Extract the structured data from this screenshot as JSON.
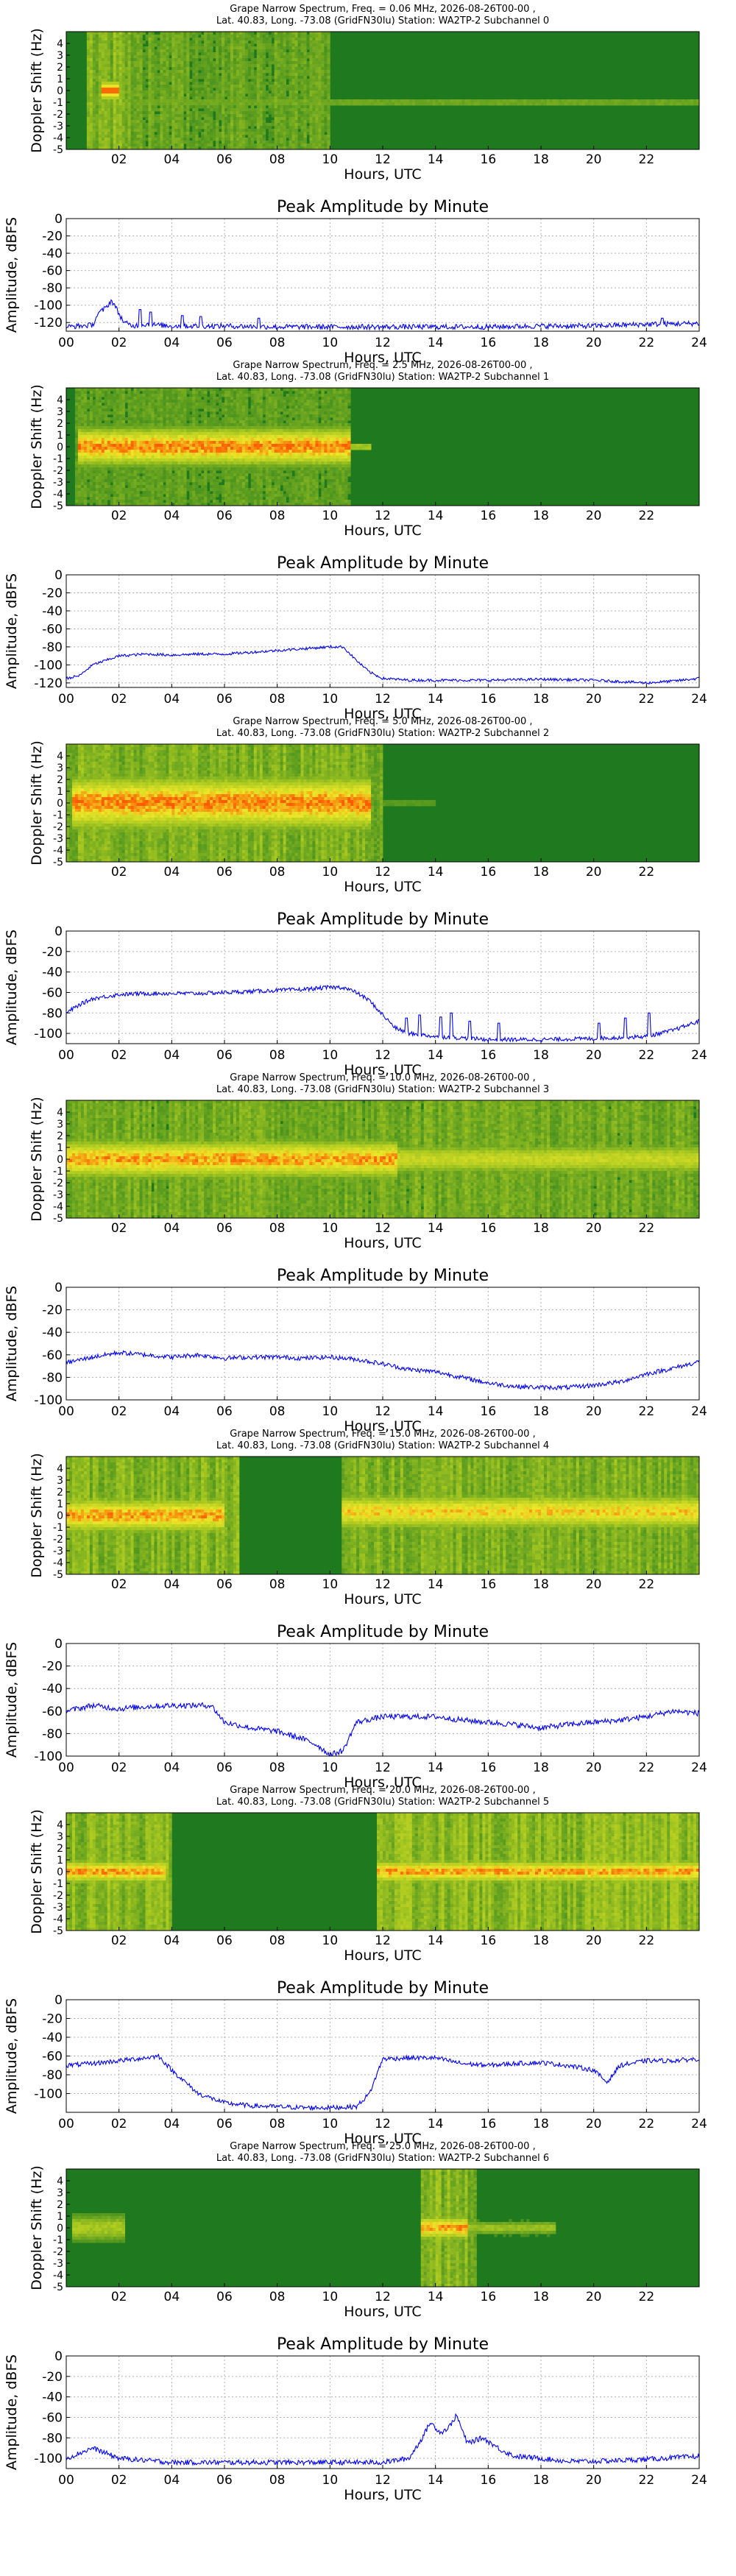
{
  "figure": {
    "spectrum_ylabel": "Doppler Shift (Hz)",
    "amp_title": "Peak Amplitude by Minute",
    "amp_ylabel": "Amplitude, dBFS",
    "xlabel": "Hours, UTC",
    "colors": {
      "line": "#0000ff",
      "spec_bg": "#1f7a1f",
      "spec_mid": "#a8c820",
      "spec_hot": "#ff5a00"
    }
  },
  "chart_data": [
    {
      "type": "heatmap",
      "channel": 0,
      "title_line1": "Grape Narrow Spectrum, Freq. = 0.06 MHz, 2026-08-26T00-00 ,",
      "title_line2": "Lat.  40.83, Long. -73.08 (GridFN30lu) Station: WA2TP-2 Subchannel 0",
      "xlabel": "Hours, UTC",
      "ylabel": "Doppler Shift (Hz)",
      "x_ticks": [
        "02",
        "04",
        "06",
        "08",
        "10",
        "12",
        "14",
        "16",
        "18",
        "20",
        "22"
      ],
      "y_ticks": [
        "4",
        "3",
        "2",
        "1",
        "0",
        "-1",
        "-2",
        "-3",
        "-4",
        "-5"
      ],
      "xlim": [
        0,
        24
      ],
      "ylim": [
        -5,
        5
      ],
      "features": [
        {
          "kind": "carrier",
          "start": 1.0,
          "end": 24,
          "doppler": -1.0,
          "intensity": 0.35,
          "width": 0.15
        },
        {
          "kind": "hotspot",
          "start": 1.3,
          "end": 2.0,
          "doppler": 0.0,
          "intensity": 1.0
        },
        {
          "kind": "noise_band",
          "start": 0.8,
          "end": 2.4,
          "intensity": 0.7
        },
        {
          "kind": "noise_band",
          "start": 2.4,
          "end": 10.0,
          "intensity": 0.45
        }
      ]
    },
    {
      "type": "line",
      "channel": 0,
      "title": "Peak Amplitude by Minute",
      "xlabel": "Hours, UTC",
      "ylabel": "Amplitude, dBFS",
      "x_ticks": [
        "00",
        "02",
        "04",
        "06",
        "08",
        "10",
        "12",
        "14",
        "16",
        "18",
        "20",
        "22",
        "24"
      ],
      "y_ticks": [
        "0",
        "-20",
        "-40",
        "-60",
        "-80",
        "-100",
        "-120"
      ],
      "xlim": [
        0,
        24
      ],
      "ylim": [
        -130,
        0
      ],
      "x": [
        0,
        0.5,
        1,
        1.2,
        1.5,
        1.7,
        1.8,
        2,
        2.2,
        2.5,
        3,
        4,
        6,
        8,
        10,
        12,
        14,
        16,
        18,
        20,
        22,
        24
      ],
      "values": [
        -125,
        -124,
        -123,
        -110,
        -103,
        -95,
        -98,
        -110,
        -120,
        -124,
        -122,
        -124,
        -124,
        -125,
        -125,
        -125,
        -125,
        -125,
        -124,
        -124,
        -122,
        -121
      ],
      "noise": 3,
      "spikes": [
        [
          2.8,
          -105
        ],
        [
          3.2,
          -108
        ],
        [
          4.4,
          -112
        ],
        [
          5.1,
          -113
        ],
        [
          7.3,
          -115
        ],
        [
          22.6,
          -115
        ]
      ]
    },
    {
      "type": "heatmap",
      "channel": 1,
      "title_line1": "Grape Narrow Spectrum, Freq. = 2.5 MHz, 2026-08-26T00-00 ,",
      "title_line2": "Lat.  40.83, Long. -73.08 (GridFN30lu) Station: WA2TP-2 Subchannel 1",
      "xlabel": "Hours, UTC",
      "ylabel": "Doppler Shift (Hz)",
      "x_ticks": [
        "02",
        "04",
        "06",
        "08",
        "10",
        "12",
        "14",
        "16",
        "18",
        "20",
        "22"
      ],
      "y_ticks": [
        "4",
        "3",
        "2",
        "1",
        "0",
        "-1",
        "-2",
        "-3",
        "-4",
        "-5"
      ],
      "xlim": [
        0,
        24
      ],
      "ylim": [
        -5,
        5
      ],
      "features": [
        {
          "kind": "carrier",
          "start": 0.5,
          "end": 10.8,
          "doppler": 0.0,
          "intensity": 1.0,
          "width": 1.0
        },
        {
          "kind": "carrier",
          "start": 10.8,
          "end": 11.5,
          "doppler": 0.0,
          "intensity": 0.5,
          "width": 0.2
        },
        {
          "kind": "noise_band",
          "start": 0.3,
          "end": 10.8,
          "intensity": 0.35
        }
      ]
    },
    {
      "type": "line",
      "channel": 1,
      "title": "Peak Amplitude by Minute",
      "xlabel": "Hours, UTC",
      "ylabel": "Amplitude, dBFS",
      "x_ticks": [
        "00",
        "02",
        "04",
        "06",
        "08",
        "10",
        "12",
        "14",
        "16",
        "18",
        "20",
        "22",
        "24"
      ],
      "y_ticks": [
        "0",
        "-20",
        "-40",
        "-60",
        "-80",
        "-100",
        "-120"
      ],
      "xlim": [
        0,
        24
      ],
      "ylim": [
        -125,
        0
      ],
      "x": [
        0,
        0.5,
        1,
        2,
        3,
        4,
        5,
        6,
        7,
        8,
        9,
        10,
        10.5,
        11,
        11.5,
        12,
        13,
        14,
        16,
        18,
        20,
        22,
        23,
        24
      ],
      "values": [
        -115,
        -112,
        -100,
        -90,
        -88,
        -89,
        -88,
        -88,
        -86,
        -84,
        -82,
        -80,
        -80,
        -95,
        -108,
        -115,
        -117,
        -117,
        -117,
        -116,
        -117,
        -120,
        -118,
        -115
      ],
      "noise": 1.5,
      "spikes": []
    },
    {
      "type": "heatmap",
      "channel": 2,
      "title_line1": "Grape Narrow Spectrum, Freq. = 5.0 MHz, 2026-08-26T00-00 ,",
      "title_line2": "Lat.  40.83, Long. -73.08 (GridFN30lu) Station: WA2TP-2 Subchannel 2",
      "xlabel": "Hours, UTC",
      "ylabel": "Doppler Shift (Hz)",
      "x_ticks": [
        "02",
        "04",
        "06",
        "08",
        "10",
        "12",
        "14",
        "16",
        "18",
        "20",
        "22"
      ],
      "y_ticks": [
        "4",
        "3",
        "2",
        "1",
        "0",
        "-1",
        "-2",
        "-3",
        "-4",
        "-5"
      ],
      "xlim": [
        0,
        24
      ],
      "ylim": [
        -5,
        5
      ],
      "features": [
        {
          "kind": "carrier",
          "start": 0.2,
          "end": 11.5,
          "doppler": 0.0,
          "intensity": 1.0,
          "width": 1.4
        },
        {
          "kind": "noise_band",
          "start": 0.0,
          "end": 12.0,
          "intensity": 0.65
        },
        {
          "kind": "carrier",
          "start": 12.0,
          "end": 14.0,
          "doppler": 0.0,
          "intensity": 0.25,
          "width": 0.15
        }
      ]
    },
    {
      "type": "line",
      "channel": 2,
      "title": "Peak Amplitude by Minute",
      "xlabel": "Hours, UTC",
      "ylabel": "Amplitude, dBFS",
      "x_ticks": [
        "00",
        "02",
        "04",
        "06",
        "08",
        "10",
        "12",
        "14",
        "16",
        "18",
        "20",
        "22",
        "24"
      ],
      "y_ticks": [
        "0",
        "-20",
        "-40",
        "-60",
        "-80",
        "-100"
      ],
      "xlim": [
        0,
        24
      ],
      "ylim": [
        -110,
        0
      ],
      "x": [
        0,
        0.5,
        1,
        2,
        3,
        4,
        5,
        6,
        7,
        8,
        9,
        10,
        10.5,
        11,
        11.5,
        12,
        12.5,
        13,
        14,
        16,
        18,
        20,
        22,
        23,
        24
      ],
      "values": [
        -80,
        -72,
        -66,
        -62,
        -61,
        -61,
        -61,
        -60,
        -59,
        -58,
        -57,
        -55,
        -55,
        -60,
        -68,
        -82,
        -95,
        -100,
        -103,
        -106,
        -106,
        -105,
        -103,
        -97,
        -88
      ],
      "noise": 2,
      "spikes": [
        [
          12.9,
          -85
        ],
        [
          13.4,
          -82
        ],
        [
          14.2,
          -84
        ],
        [
          14.6,
          -80
        ],
        [
          15.3,
          -88
        ],
        [
          16.4,
          -90
        ],
        [
          20.2,
          -90
        ],
        [
          21.2,
          -85
        ],
        [
          22.1,
          -80
        ]
      ]
    },
    {
      "type": "heatmap",
      "channel": 3,
      "title_line1": "Grape Narrow Spectrum, Freq. = 10.0 MHz, 2026-08-26T00-00 ,",
      "title_line2": "Lat.  40.83, Long. -73.08 (GridFN30lu) Station: WA2TP-2 Subchannel 3",
      "xlabel": "Hours, UTC",
      "ylabel": "Doppler Shift (Hz)",
      "x_ticks": [
        "02",
        "04",
        "06",
        "08",
        "10",
        "12",
        "14",
        "16",
        "18",
        "20",
        "22"
      ],
      "y_ticks": [
        "4",
        "3",
        "2",
        "1",
        "0",
        "-1",
        "-2",
        "-3",
        "-4",
        "-5"
      ],
      "xlim": [
        0,
        24
      ],
      "ylim": [
        -5,
        5
      ],
      "features": [
        {
          "kind": "carrier",
          "start": 0.0,
          "end": 12.5,
          "doppler": 0.0,
          "intensity": 0.95,
          "width": 1.0
        },
        {
          "kind": "carrier",
          "start": 12.5,
          "end": 24.0,
          "doppler": 0.0,
          "intensity": 0.6,
          "width": 0.8
        },
        {
          "kind": "noise_band",
          "start": 0.0,
          "end": 24.0,
          "intensity": 0.55
        }
      ]
    },
    {
      "type": "line",
      "channel": 3,
      "title": "Peak Amplitude by Minute",
      "xlabel": "Hours, UTC",
      "ylabel": "Amplitude, dBFS",
      "x_ticks": [
        "00",
        "02",
        "04",
        "06",
        "08",
        "10",
        "12",
        "14",
        "16",
        "18",
        "20",
        "22",
        "24"
      ],
      "y_ticks": [
        "0",
        "-20",
        "-40",
        "-60",
        "-80",
        "-100"
      ],
      "xlim": [
        0,
        24
      ],
      "ylim": [
        -100,
        0
      ],
      "x": [
        0,
        1,
        2,
        3,
        4,
        5,
        6,
        7,
        8,
        9,
        10,
        11,
        12,
        13,
        14,
        15,
        16,
        17,
        18,
        19,
        20,
        21,
        22,
        23,
        24
      ],
      "values": [
        -67,
        -62,
        -58,
        -60,
        -62,
        -60,
        -63,
        -62,
        -62,
        -63,
        -62,
        -64,
        -68,
        -73,
        -75,
        -80,
        -85,
        -88,
        -89,
        -89,
        -87,
        -84,
        -77,
        -72,
        -66
      ],
      "noise": 2,
      "spikes": []
    },
    {
      "type": "heatmap",
      "channel": 4,
      "title_line1": "Grape Narrow Spectrum, Freq. = 15.0 MHz, 2026-08-26T00-00 ,",
      "title_line2": "Lat.  40.83, Long. -73.08 (GridFN30lu) Station: WA2TP-2 Subchannel 4",
      "xlabel": "Hours, UTC",
      "ylabel": "Doppler Shift (Hz)",
      "x_ticks": [
        "02",
        "04",
        "06",
        "08",
        "10",
        "12",
        "14",
        "16",
        "18",
        "20",
        "22"
      ],
      "y_ticks": [
        "4",
        "3",
        "2",
        "1",
        "0",
        "-1",
        "-2",
        "-3",
        "-4",
        "-5"
      ],
      "xlim": [
        0,
        24
      ],
      "ylim": [
        -5,
        5
      ],
      "features": [
        {
          "kind": "carrier",
          "start": 0.0,
          "end": 6.0,
          "doppler": 0.0,
          "intensity": 0.95,
          "width": 0.9
        },
        {
          "kind": "carrier",
          "start": 10.5,
          "end": 24.0,
          "doppler": 0.3,
          "intensity": 0.85,
          "width": 0.9
        },
        {
          "kind": "noise_band",
          "start": 0.0,
          "end": 6.5,
          "intensity": 0.7
        },
        {
          "kind": "noise_band",
          "start": 10.5,
          "end": 24.0,
          "intensity": 0.65
        }
      ]
    },
    {
      "type": "line",
      "channel": 4,
      "title": "Peak Amplitude by Minute",
      "xlabel": "Hours, UTC",
      "ylabel": "Amplitude, dBFS",
      "x_ticks": [
        "00",
        "02",
        "04",
        "06",
        "08",
        "10",
        "12",
        "14",
        "16",
        "18",
        "20",
        "22",
        "24"
      ],
      "y_ticks": [
        "0",
        "-20",
        "-40",
        "-60",
        "-80",
        "-100"
      ],
      "xlim": [
        0,
        24
      ],
      "ylim": [
        -100,
        0
      ],
      "x": [
        0,
        1,
        2,
        3,
        4,
        5,
        5.5,
        6,
        7,
        8,
        9,
        9.5,
        10,
        10.5,
        11,
        12,
        13,
        14,
        15,
        16,
        17,
        18,
        19,
        20,
        21,
        22,
        23,
        24
      ],
      "values": [
        -60,
        -55,
        -58,
        -56,
        -55,
        -55,
        -55,
        -70,
        -75,
        -78,
        -85,
        -90,
        -99,
        -95,
        -70,
        -65,
        -65,
        -65,
        -68,
        -70,
        -72,
        -75,
        -72,
        -70,
        -68,
        -65,
        -60,
        -62
      ],
      "noise": 2.5,
      "spikes": []
    },
    {
      "type": "heatmap",
      "channel": 5,
      "title_line1": "Grape Narrow Spectrum, Freq. = 20.0 MHz, 2026-08-26T00-00 ,",
      "title_line2": "Lat.  40.83, Long. -73.08 (GridFN30lu) Station: WA2TP-2 Subchannel 5",
      "xlabel": "Hours, UTC",
      "ylabel": "Doppler Shift (Hz)",
      "x_ticks": [
        "02",
        "04",
        "06",
        "08",
        "10",
        "12",
        "14",
        "16",
        "18",
        "20",
        "22"
      ],
      "y_ticks": [
        "4",
        "3",
        "2",
        "1",
        "0",
        "-1",
        "-2",
        "-3",
        "-4",
        "-5"
      ],
      "xlim": [
        0,
        24
      ],
      "ylim": [
        -5,
        5
      ],
      "features": [
        {
          "kind": "carrier",
          "start": 0.0,
          "end": 3.8,
          "doppler": 0.0,
          "intensity": 0.95,
          "width": 0.6
        },
        {
          "kind": "carrier",
          "start": 11.8,
          "end": 24.0,
          "doppler": 0.0,
          "intensity": 0.95,
          "width": 0.6
        },
        {
          "kind": "noise_band",
          "start": 0.0,
          "end": 4.0,
          "intensity": 0.75
        },
        {
          "kind": "noise_band",
          "start": 11.8,
          "end": 24.0,
          "intensity": 0.8
        }
      ]
    },
    {
      "type": "line",
      "channel": 5,
      "title": "Peak Amplitude by Minute",
      "xlabel": "Hours, UTC",
      "ylabel": "Amplitude, dBFS",
      "x_ticks": [
        "00",
        "02",
        "04",
        "06",
        "08",
        "10",
        "12",
        "14",
        "16",
        "18",
        "20",
        "22",
        "24"
      ],
      "y_ticks": [
        "0",
        "-20",
        "-40",
        "-60",
        "-80",
        "-100"
      ],
      "xlim": [
        0,
        24
      ],
      "ylim": [
        -120,
        0
      ],
      "x": [
        0,
        1,
        2,
        3,
        3.5,
        4,
        5,
        6,
        7,
        8,
        9,
        10,
        11,
        11.5,
        12,
        13,
        14,
        15,
        16,
        17,
        18,
        19,
        20,
        20.5,
        21,
        22,
        23,
        24
      ],
      "values": [
        -70,
        -68,
        -65,
        -62,
        -60,
        -75,
        -100,
        -110,
        -113,
        -114,
        -115,
        -115,
        -114,
        -100,
        -63,
        -62,
        -62,
        -68,
        -70,
        -68,
        -67,
        -70,
        -75,
        -88,
        -70,
        -65,
        -65,
        -63
      ],
      "noise": 2.5,
      "spikes": []
    },
    {
      "type": "heatmap",
      "channel": 6,
      "title_line1": "Grape Narrow Spectrum, Freq. = 25.0 MHz, 2026-08-26T00-00 ,",
      "title_line2": "Lat.  40.83, Long. -73.08 (GridFN30lu) Station: WA2TP-2 Subchannel 6",
      "xlabel": "Hours, UTC",
      "ylabel": "Doppler Shift (Hz)",
      "x_ticks": [
        "02",
        "04",
        "06",
        "08",
        "10",
        "12",
        "14",
        "16",
        "18",
        "20",
        "22"
      ],
      "y_ticks": [
        "4",
        "3",
        "2",
        "1",
        "0",
        "-1",
        "-2",
        "-3",
        "-4",
        "-5"
      ],
      "xlim": [
        0,
        24
      ],
      "ylim": [
        -5,
        5
      ],
      "features": [
        {
          "kind": "carrier",
          "start": 0.2,
          "end": 2.2,
          "doppler": 0.0,
          "intensity": 0.45,
          "width": 0.8
        },
        {
          "kind": "carrier",
          "start": 13.5,
          "end": 15.2,
          "doppler": 0.0,
          "intensity": 0.95,
          "width": 0.6
        },
        {
          "kind": "carrier",
          "start": 15.2,
          "end": 18.5,
          "doppler": 0.0,
          "intensity": 0.4,
          "width": 0.4
        },
        {
          "kind": "noise_band",
          "start": 13.5,
          "end": 15.5,
          "intensity": 0.7
        }
      ]
    },
    {
      "type": "line",
      "channel": 6,
      "title": "Peak Amplitude by Minute",
      "xlabel": "Hours, UTC",
      "ylabel": "Amplitude, dBFS",
      "x_ticks": [
        "00",
        "02",
        "04",
        "06",
        "08",
        "10",
        "12",
        "14",
        "16",
        "18",
        "20",
        "22",
        "24"
      ],
      "y_ticks": [
        "0",
        "-20",
        "-40",
        "-60",
        "-80",
        "-100"
      ],
      "xlim": [
        0,
        24
      ],
      "ylim": [
        -110,
        0
      ],
      "x": [
        0,
        0.5,
        1,
        1.5,
        2,
        3,
        4,
        6,
        8,
        10,
        12,
        13,
        13.5,
        13.8,
        14.2,
        14.5,
        14.8,
        15.2,
        15.8,
        16.5,
        17,
        18,
        19,
        20,
        22,
        24
      ],
      "values": [
        -100,
        -95,
        -90,
        -95,
        -100,
        -102,
        -104,
        -104,
        -104,
        -104,
        -104,
        -100,
        -80,
        -65,
        -75,
        -70,
        -58,
        -85,
        -80,
        -92,
        -98,
        -100,
        -103,
        -103,
        -101,
        -98
      ],
      "noise": 2.5,
      "spikes": []
    }
  ]
}
